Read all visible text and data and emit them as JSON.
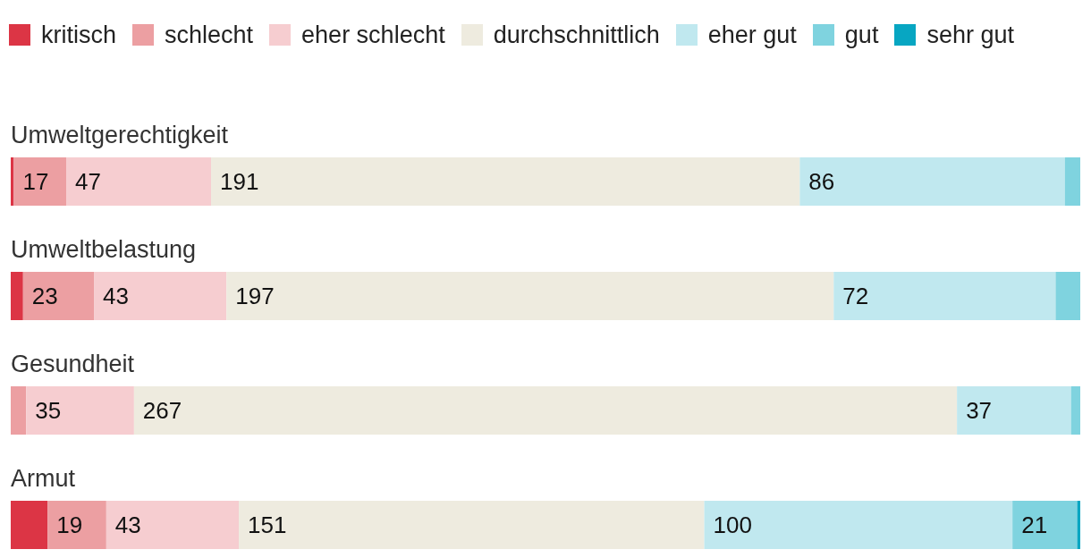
{
  "chart_data": {
    "type": "bar",
    "orientation": "horizontal",
    "stacked": true,
    "legend": "top",
    "categories": [
      "Umweltgerechtigkeit",
      "Umweltbelastung",
      "Gesundheit",
      "Armut"
    ],
    "series": [
      {
        "name": "kritisch",
        "color": "#dc3545",
        "values": [
          1,
          4,
          0,
          12
        ],
        "value_labels": [
          null,
          null,
          null,
          null
        ]
      },
      {
        "name": "schlecht",
        "color": "#ec9fa2",
        "values": [
          17,
          23,
          5,
          19
        ],
        "value_labels": [
          "17",
          "23",
          null,
          "19"
        ]
      },
      {
        "name": "eher schlecht",
        "color": "#f6cdd0",
        "values": [
          47,
          43,
          35,
          43
        ],
        "value_labels": [
          "47",
          "43",
          "35",
          "43"
        ]
      },
      {
        "name": "durchschnittlich",
        "color": "#eeebdf",
        "values": [
          191,
          197,
          267,
          151
        ],
        "value_labels": [
          "191",
          "197",
          "267",
          "151"
        ]
      },
      {
        "name": "eher gut",
        "color": "#c0e8ef",
        "values": [
          86,
          72,
          37,
          100
        ],
        "value_labels": [
          "86",
          "72",
          "37",
          "100"
        ]
      },
      {
        "name": "gut",
        "color": "#7fd3df",
        "values": [
          5,
          8,
          3,
          21
        ],
        "value_labels": [
          null,
          null,
          null,
          "21"
        ]
      },
      {
        "name": "sehr gut",
        "color": "#07a6c2",
        "values": [
          0,
          0,
          0,
          1
        ],
        "value_labels": [
          null,
          null,
          null,
          null
        ]
      }
    ]
  }
}
